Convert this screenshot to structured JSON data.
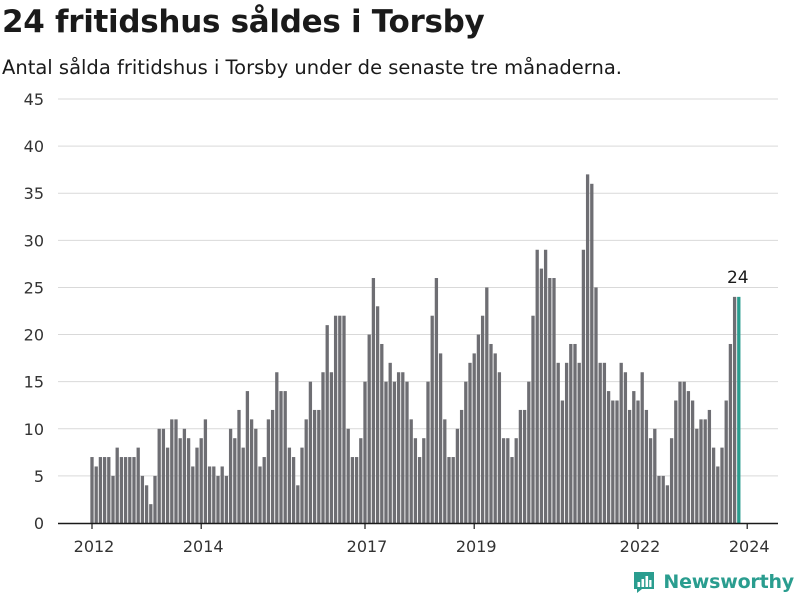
{
  "chart_data": {
    "type": "bar",
    "title": "24 fritidshus såldes i Torsby",
    "subtitle": "Antal sålda fritidshus i Torsby under de senaste tre månaderna.",
    "xlabel": "",
    "ylabel": "",
    "ylim": [
      0,
      45
    ],
    "yticks": [
      0,
      5,
      10,
      15,
      20,
      25,
      30,
      35,
      40,
      45
    ],
    "xtick_labels": [
      "2012",
      "2014",
      "2017",
      "2019",
      "2022",
      "2024"
    ],
    "xtick_index": [
      0,
      26,
      65,
      91,
      130,
      156
    ],
    "grid": true,
    "values": [
      7,
      6,
      7,
      7,
      7,
      5,
      8,
      7,
      7,
      7,
      7,
      8,
      5,
      4,
      2,
      5,
      10,
      10,
      8,
      11,
      11,
      9,
      10,
      9,
      6,
      8,
      9,
      11,
      6,
      6,
      5,
      6,
      5,
      10,
      9,
      12,
      8,
      14,
      11,
      10,
      6,
      7,
      11,
      12,
      16,
      14,
      14,
      8,
      7,
      4,
      8,
      11,
      15,
      12,
      12,
      16,
      21,
      16,
      22,
      22,
      22,
      10,
      7,
      7,
      9,
      15,
      20,
      26,
      23,
      19,
      15,
      17,
      15,
      16,
      16,
      15,
      11,
      9,
      7,
      9,
      15,
      22,
      26,
      18,
      11,
      7,
      7,
      10,
      12,
      15,
      17,
      18,
      20,
      22,
      25,
      19,
      18,
      16,
      9,
      9,
      7,
      9,
      12,
      12,
      15,
      22,
      29,
      27,
      29,
      26,
      26,
      17,
      13,
      17,
      19,
      19,
      17,
      29,
      37,
      36,
      25,
      17,
      17,
      14,
      13,
      13,
      17,
      16,
      12,
      14,
      13,
      16,
      12,
      9,
      10,
      5,
      5,
      4,
      9,
      13,
      15,
      15,
      14,
      13,
      10,
      11,
      11,
      12,
      8,
      6,
      8,
      13,
      19,
      24,
      24
    ],
    "highlight_last": 1,
    "highlight_label": "24",
    "colors": {
      "bar": "#6e6e73",
      "highlight": "#2a9d8f",
      "grid": "#d9d9d9",
      "axis": "#1a1a1a",
      "text": "#333333"
    }
  },
  "brand": {
    "name": "Newsworthy",
    "icon": "bar-chart-icon",
    "color": "#2a9d8f"
  }
}
